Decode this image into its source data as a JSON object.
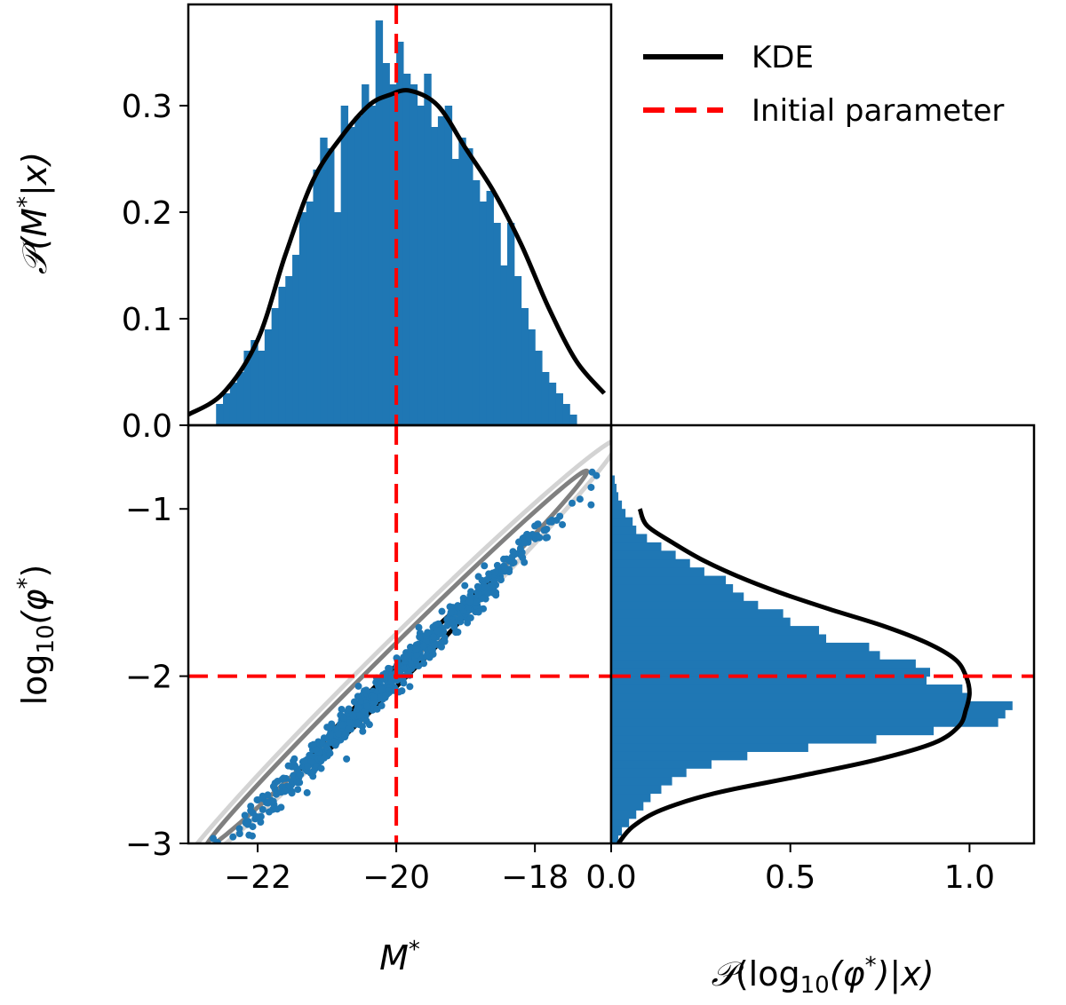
{
  "chart_data": [
    {
      "panel": "top-marginal",
      "type": "bar",
      "ylabel": "𝒫(M*|x)",
      "xlim": [
        -23,
        -16.9
      ],
      "ylim": [
        0,
        0.395
      ],
      "yticks": [
        0.0,
        0.1,
        0.2,
        0.3
      ],
      "ytick_labels": [
        "0.0",
        "0.1",
        "0.2",
        "0.3"
      ],
      "histogram": {
        "x0": -22.6,
        "bin_width": 0.1,
        "values": [
          0.02,
          0.03,
          0.04,
          0.05,
          0.07,
          0.08,
          0.07,
          0.09,
          0.11,
          0.13,
          0.14,
          0.16,
          0.2,
          0.21,
          0.24,
          0.27,
          0.26,
          0.2,
          0.3,
          0.28,
          0.29,
          0.32,
          0.3,
          0.38,
          0.34,
          0.32,
          0.36,
          0.33,
          0.32,
          0.3,
          0.33,
          0.28,
          0.29,
          0.3,
          0.25,
          0.27,
          0.26,
          0.23,
          0.21,
          0.22,
          0.19,
          0.15,
          0.19,
          0.14,
          0.11,
          0.09,
          0.07,
          0.05,
          0.04,
          0.03,
          0.02,
          0.01
        ]
      },
      "kde": {
        "x": [
          -23,
          -22.5,
          -22,
          -21.6,
          -21.2,
          -20.8,
          -20.4,
          -20.1,
          -19.8,
          -19.4,
          -19.0,
          -18.6,
          -18.2,
          -17.8,
          -17.4,
          -17.0
        ],
        "y": [
          0.01,
          0.03,
          0.08,
          0.16,
          0.23,
          0.27,
          0.3,
          0.31,
          0.314,
          0.3,
          0.26,
          0.22,
          0.17,
          0.11,
          0.06,
          0.03
        ]
      },
      "reference_line": {
        "axis": "x",
        "value": -20,
        "name": "Initial parameter"
      }
    },
    {
      "panel": "joint",
      "type": "scatter",
      "xlabel": "M*",
      "ylabel": "log10(φ*)",
      "xlim": [
        -23,
        -16.9
      ],
      "ylim": [
        -3,
        -0.5
      ],
      "xticks": [
        -22,
        -20,
        -18
      ],
      "xtick_labels": [
        "−22",
        "−20",
        "−18"
      ],
      "yticks": [
        -1,
        -2,
        -3
      ],
      "ytick_labels": [
        "−1",
        "−2",
        "−3"
      ],
      "trend": {
        "slope": 0.41,
        "intercept": 6.2
      },
      "contours": [
        {
          "level": "inner",
          "color": "#000000",
          "center": [
            -20,
            -2
          ],
          "half_length": 1.35,
          "half_width": 0.045
        },
        {
          "level": "middle",
          "color": "#808080",
          "center": [
            -20,
            -1.9
          ],
          "half_length": 2.75,
          "half_width": 0.07
        },
        {
          "level": "outer",
          "color": "#d3d3d3",
          "center": [
            -20,
            -1.9
          ],
          "half_length": 3.2,
          "half_width": 0.11
        }
      ],
      "reference_lines": [
        {
          "axis": "x",
          "value": -20
        },
        {
          "axis": "y",
          "value": -2
        }
      ]
    },
    {
      "panel": "right-marginal",
      "type": "bar",
      "orientation": "horizontal",
      "xlabel": "𝒫(log10(φ*)|x)",
      "xlim": [
        0,
        1.18
      ],
      "ylim": [
        -3,
        -0.5
      ],
      "xticks": [
        0.0,
        0.5,
        1.0
      ],
      "xtick_labels": [
        "0.0",
        "0.5",
        "1.0"
      ],
      "histogram": {
        "y0": -3.0,
        "bin_width": 0.05,
        "values": [
          0.02,
          0.03,
          0.05,
          0.07,
          0.09,
          0.11,
          0.14,
          0.17,
          0.21,
          0.28,
          0.38,
          0.55,
          0.74,
          0.9,
          1.08,
          1.1,
          1.12,
          1.0,
          0.98,
          0.88,
          0.89,
          0.85,
          0.75,
          0.72,
          0.6,
          0.58,
          0.5,
          0.48,
          0.41,
          0.37,
          0.34,
          0.32,
          0.26,
          0.22,
          0.18,
          0.14,
          0.1,
          0.07,
          0.06,
          0.04,
          0.03,
          0.02,
          0.015,
          0.01
        ]
      },
      "kde": {
        "y": [
          -3.0,
          -2.9,
          -2.8,
          -2.7,
          -2.6,
          -2.5,
          -2.4,
          -2.3,
          -2.2,
          -2.1,
          -2.0,
          -1.9,
          -1.8,
          -1.7,
          -1.6,
          -1.5,
          -1.4,
          -1.3,
          -1.2,
          -1.1,
          -1.0
        ],
        "x": [
          0.02,
          0.06,
          0.14,
          0.29,
          0.52,
          0.74,
          0.9,
          0.97,
          0.99,
          1.0,
          0.99,
          0.96,
          0.88,
          0.76,
          0.61,
          0.47,
          0.35,
          0.25,
          0.17,
          0.1,
          0.08
        ]
      },
      "reference_line": {
        "axis": "y",
        "value": -2
      }
    }
  ],
  "legend": {
    "position": "top-right",
    "entries": [
      {
        "label": "KDE",
        "style": "solid",
        "color": "#000000"
      },
      {
        "label": "Initial parameter",
        "style": "dashed",
        "color": "#ff0000"
      }
    ]
  },
  "colors": {
    "hist": "#1f77b4",
    "scatter": "#1f77b4",
    "kde": "#000000",
    "reference": "#ff0000"
  },
  "labels": {
    "top_ylabel_script": "𝒫",
    "top_ylabel_rest": "(M",
    "top_ylabel_sup": "*",
    "top_ylabel_end": "|x)",
    "joint_xlabel_main": "M",
    "joint_xlabel_sup": "*",
    "joint_ylabel_log": "log",
    "joint_ylabel_sub": "10",
    "joint_ylabel_phi": "(φ",
    "joint_ylabel_sup": "*",
    "joint_ylabel_end": ")",
    "right_xlabel_script": "𝒫",
    "right_xlabel_log": "(log",
    "right_xlabel_sub": "10",
    "right_xlabel_phi": "(φ",
    "right_xlabel_sup": "*",
    "right_xlabel_end": ")|x)"
  }
}
